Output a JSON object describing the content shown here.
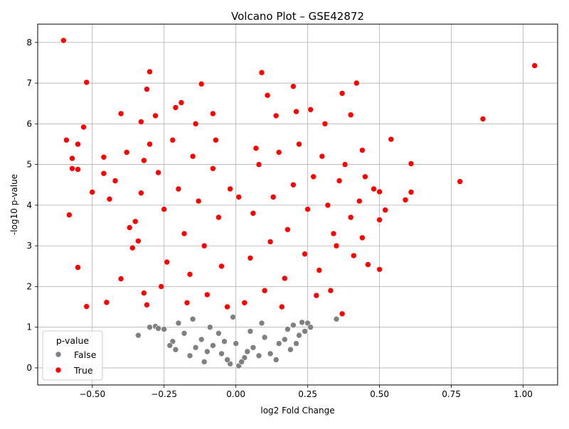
{
  "chart_data": {
    "type": "scatter",
    "title": "Volcano Plot – GSE42872",
    "xlabel": "log2 Fold Change",
    "ylabel": "-log10 p-value",
    "xlim": [
      -0.69,
      1.12
    ],
    "ylim": [
      -0.42,
      8.45
    ],
    "xticks": [
      -0.5,
      -0.25,
      0.0,
      0.25,
      0.5,
      0.75,
      1.0
    ],
    "xtick_labels": [
      "−0.50",
      "−0.25",
      "0.00",
      "0.25",
      "0.50",
      "0.75",
      "1.00"
    ],
    "yticks": [
      0,
      1,
      2,
      3,
      4,
      5,
      6,
      7,
      8
    ],
    "ytick_labels": [
      "0",
      "1",
      "2",
      "3",
      "4",
      "5",
      "6",
      "7",
      "8"
    ],
    "grid": true,
    "legend": {
      "title": "p-value",
      "placement": "lower-left",
      "entries": [
        {
          "label": "False",
          "color": "#808080"
        },
        {
          "label": "True",
          "color": "#ff0000"
        }
      ]
    },
    "series": [
      {
        "name": "False",
        "color": "#808080",
        "points": [
          [
            -0.34,
            0.8
          ],
          [
            0.35,
            1.2
          ],
          [
            -0.28,
            1.02
          ],
          [
            0.23,
            1.12
          ],
          [
            0.25,
            1.1
          ],
          [
            0.24,
            0.9
          ],
          [
            -0.2,
            1.1
          ],
          [
            0.2,
            1.05
          ],
          [
            -0.15,
            1.2
          ],
          [
            0.18,
            0.95
          ],
          [
            -0.12,
            0.7
          ],
          [
            0.1,
            0.75
          ],
          [
            -0.08,
            0.55
          ],
          [
            0.06,
            0.5
          ],
          [
            -0.05,
            0.35
          ],
          [
            0.03,
            0.25
          ],
          [
            -0.02,
            0.1
          ],
          [
            0.01,
            0.05
          ],
          [
            -0.18,
            0.85
          ],
          [
            0.15,
            0.6
          ],
          [
            -0.1,
            0.4
          ],
          [
            0.08,
            0.3
          ],
          [
            -0.03,
            0.2
          ],
          [
            0.02,
            0.15
          ],
          [
            -0.25,
            0.95
          ],
          [
            0.22,
            0.8
          ],
          [
            -0.22,
            0.65
          ],
          [
            0.19,
            0.45
          ],
          [
            -0.14,
            0.5
          ],
          [
            0.12,
            0.35
          ],
          [
            -0.06,
            0.85
          ],
          [
            0.05,
            0.9
          ],
          [
            -0.01,
            1.25
          ],
          [
            0.0,
            0.6
          ],
          [
            -0.16,
            0.3
          ],
          [
            0.14,
            0.2
          ],
          [
            -0.09,
            1.0
          ],
          [
            0.09,
            1.1
          ],
          [
            -0.21,
            0.45
          ],
          [
            0.17,
            0.7
          ],
          [
            -0.04,
            0.65
          ],
          [
            0.04,
            0.4
          ],
          [
            -0.27,
            0.97
          ],
          [
            0.26,
            1.0
          ],
          [
            -0.3,
            1.0
          ],
          [
            -0.23,
            0.55
          ],
          [
            0.21,
            0.6
          ],
          [
            -0.11,
            0.15
          ]
        ]
      },
      {
        "name": "True",
        "color": "#ff0000",
        "points": [
          [
            -0.6,
            8.05
          ],
          [
            1.04,
            7.43
          ],
          [
            0.09,
            7.26
          ],
          [
            -0.3,
            7.28
          ],
          [
            -0.52,
            7.02
          ],
          [
            -0.12,
            6.98
          ],
          [
            0.42,
            7.0
          ],
          [
            0.2,
            6.92
          ],
          [
            -0.31,
            6.85
          ],
          [
            0.37,
            6.75
          ],
          [
            0.11,
            6.7
          ],
          [
            -0.19,
            6.52
          ],
          [
            0.86,
            6.12
          ],
          [
            -0.4,
            6.25
          ],
          [
            -0.08,
            6.25
          ],
          [
            0.4,
            6.22
          ],
          [
            -0.53,
            5.92
          ],
          [
            -0.33,
            6.05
          ],
          [
            0.54,
            5.62
          ],
          [
            -0.59,
            5.6
          ],
          [
            -0.55,
            5.5
          ],
          [
            -0.57,
            5.15
          ],
          [
            -0.46,
            5.18
          ],
          [
            0.61,
            5.02
          ],
          [
            -0.57,
            4.9
          ],
          [
            -0.55,
            4.88
          ],
          [
            -0.46,
            4.78
          ],
          [
            0.78,
            4.58
          ],
          [
            0.61,
            4.32
          ],
          [
            -0.5,
            4.32
          ],
          [
            0.5,
            4.33
          ],
          [
            0.59,
            4.13
          ],
          [
            0.52,
            3.88
          ],
          [
            0.5,
            3.64
          ],
          [
            -0.58,
            3.76
          ],
          [
            0.44,
            3.2
          ],
          [
            0.41,
            2.76
          ],
          [
            0.46,
            2.54
          ],
          [
            0.5,
            2.42
          ],
          [
            -0.55,
            2.47
          ],
          [
            -0.4,
            2.19
          ],
          [
            -0.45,
            1.61
          ],
          [
            -0.52,
            1.51
          ],
          [
            0.37,
            1.33
          ],
          [
            -0.32,
            1.84
          ],
          [
            -0.31,
            1.55
          ],
          [
            0.28,
            1.78
          ],
          [
            -0.44,
            4.15
          ],
          [
            -0.37,
            3.45
          ],
          [
            -0.36,
            2.95
          ],
          [
            -0.34,
            3.12
          ],
          [
            -0.33,
            4.3
          ],
          [
            -0.32,
            5.1
          ],
          [
            -0.3,
            5.5
          ],
          [
            -0.27,
            4.8
          ],
          [
            -0.25,
            3.9
          ],
          [
            -0.24,
            2.6
          ],
          [
            -0.22,
            5.6
          ],
          [
            -0.2,
            4.4
          ],
          [
            -0.18,
            3.3
          ],
          [
            -0.16,
            2.3
          ],
          [
            -0.15,
            5.2
          ],
          [
            -0.13,
            4.1
          ],
          [
            -0.11,
            3.0
          ],
          [
            -0.1,
            1.8
          ],
          [
            -0.08,
            4.9
          ],
          [
            -0.06,
            3.7
          ],
          [
            -0.05,
            2.5
          ],
          [
            -0.03,
            1.5
          ],
          [
            0.03,
            1.6
          ],
          [
            0.05,
            2.7
          ],
          [
            0.06,
            3.8
          ],
          [
            0.08,
            5.0
          ],
          [
            0.1,
            1.9
          ],
          [
            0.12,
            3.1
          ],
          [
            0.13,
            4.2
          ],
          [
            0.15,
            5.3
          ],
          [
            0.17,
            2.2
          ],
          [
            0.18,
            3.4
          ],
          [
            0.2,
            4.5
          ],
          [
            0.22,
            5.5
          ],
          [
            0.24,
            2.8
          ],
          [
            0.25,
            3.9
          ],
          [
            0.27,
            4.7
          ],
          [
            0.29,
            2.4
          ],
          [
            0.3,
            5.2
          ],
          [
            0.32,
            4.0
          ],
          [
            0.34,
            3.3
          ],
          [
            0.36,
            4.6
          ],
          [
            0.38,
            5.0
          ],
          [
            0.4,
            3.7
          ],
          [
            0.43,
            4.1
          ],
          [
            0.45,
            4.7
          ],
          [
            0.48,
            4.4
          ],
          [
            -0.42,
            4.6
          ],
          [
            -0.38,
            5.3
          ],
          [
            -0.35,
            3.6
          ],
          [
            -0.28,
            6.2
          ],
          [
            -0.26,
            2.0
          ],
          [
            -0.21,
            6.4
          ],
          [
            -0.17,
            1.6
          ],
          [
            -0.14,
            6.0
          ],
          [
            -0.07,
            5.6
          ],
          [
            0.07,
            5.4
          ],
          [
            0.14,
            6.2
          ],
          [
            0.16,
            1.5
          ],
          [
            0.21,
            6.3
          ],
          [
            0.26,
            6.35
          ],
          [
            0.31,
            6.0
          ],
          [
            0.33,
            1.9
          ],
          [
            0.44,
            5.35
          ],
          [
            0.35,
            3.0
          ],
          [
            -0.02,
            4.4
          ],
          [
            0.01,
            4.2
          ]
        ]
      }
    ]
  }
}
